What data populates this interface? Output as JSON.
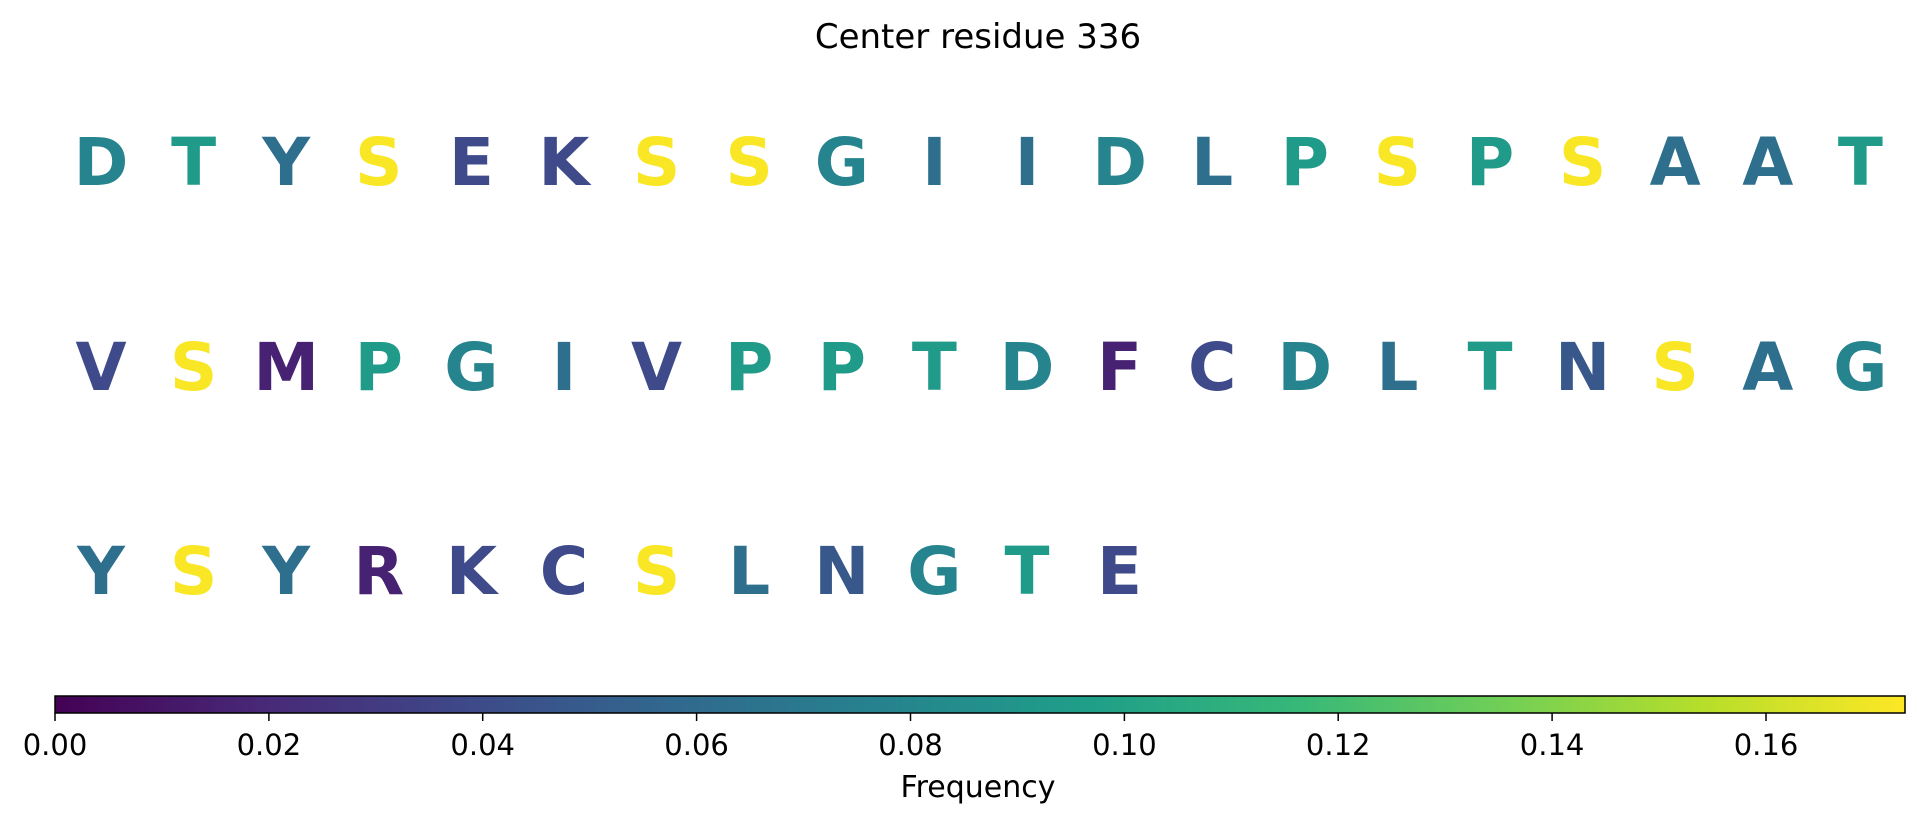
{
  "chart_data": {
    "type": "sequence-logo",
    "title": "Center residue 336",
    "colormap": "viridis",
    "letters_per_row": 20,
    "residues": [
      {
        "letter": "D",
        "frequency": 0.078
      },
      {
        "letter": "T",
        "frequency": 0.094
      },
      {
        "letter": "Y",
        "frequency": 0.063
      },
      {
        "letter": "S",
        "frequency": 0.172
      },
      {
        "letter": "E",
        "frequency": 0.039
      },
      {
        "letter": "K",
        "frequency": 0.039
      },
      {
        "letter": "S",
        "frequency": 0.172
      },
      {
        "letter": "S",
        "frequency": 0.172
      },
      {
        "letter": "G",
        "frequency": 0.078
      },
      {
        "letter": "I",
        "frequency": 0.063
      },
      {
        "letter": "I",
        "frequency": 0.063
      },
      {
        "letter": "D",
        "frequency": 0.078
      },
      {
        "letter": "L",
        "frequency": 0.063
      },
      {
        "letter": "P",
        "frequency": 0.094
      },
      {
        "letter": "S",
        "frequency": 0.172
      },
      {
        "letter": "P",
        "frequency": 0.094
      },
      {
        "letter": "S",
        "frequency": 0.172
      },
      {
        "letter": "A",
        "frequency": 0.063
      },
      {
        "letter": "A",
        "frequency": 0.063
      },
      {
        "letter": "T",
        "frequency": 0.094
      },
      {
        "letter": "V",
        "frequency": 0.039
      },
      {
        "letter": "S",
        "frequency": 0.172
      },
      {
        "letter": "M",
        "frequency": 0.016
      },
      {
        "letter": "P",
        "frequency": 0.094
      },
      {
        "letter": "G",
        "frequency": 0.078
      },
      {
        "letter": "I",
        "frequency": 0.063
      },
      {
        "letter": "V",
        "frequency": 0.039
      },
      {
        "letter": "P",
        "frequency": 0.094
      },
      {
        "letter": "P",
        "frequency": 0.094
      },
      {
        "letter": "T",
        "frequency": 0.094
      },
      {
        "letter": "D",
        "frequency": 0.078
      },
      {
        "letter": "F",
        "frequency": 0.016
      },
      {
        "letter": "C",
        "frequency": 0.039
      },
      {
        "letter": "D",
        "frequency": 0.078
      },
      {
        "letter": "L",
        "frequency": 0.063
      },
      {
        "letter": "T",
        "frequency": 0.094
      },
      {
        "letter": "N",
        "frequency": 0.047
      },
      {
        "letter": "S",
        "frequency": 0.172
      },
      {
        "letter": "A",
        "frequency": 0.063
      },
      {
        "letter": "G",
        "frequency": 0.078
      },
      {
        "letter": "Y",
        "frequency": 0.063
      },
      {
        "letter": "S",
        "frequency": 0.172
      },
      {
        "letter": "Y",
        "frequency": 0.063
      },
      {
        "letter": "R",
        "frequency": 0.016
      },
      {
        "letter": "K",
        "frequency": 0.039
      },
      {
        "letter": "C",
        "frequency": 0.039
      },
      {
        "letter": "S",
        "frequency": 0.172
      },
      {
        "letter": "L",
        "frequency": 0.063
      },
      {
        "letter": "N",
        "frequency": 0.047
      },
      {
        "letter": "G",
        "frequency": 0.078
      },
      {
        "letter": "T",
        "frequency": 0.094
      },
      {
        "letter": "E",
        "frequency": 0.039
      }
    ],
    "colorbar": {
      "label": "Frequency",
      "min": 0.0,
      "max": 0.173,
      "ticks": [
        0.0,
        0.02,
        0.04,
        0.06,
        0.08,
        0.1,
        0.12,
        0.14,
        0.16
      ],
      "tick_labels": [
        "0.00",
        "0.02",
        "0.04",
        "0.06",
        "0.08",
        "0.10",
        "0.12",
        "0.14",
        "0.16"
      ],
      "orientation": "horizontal",
      "placement": "bottom"
    }
  }
}
